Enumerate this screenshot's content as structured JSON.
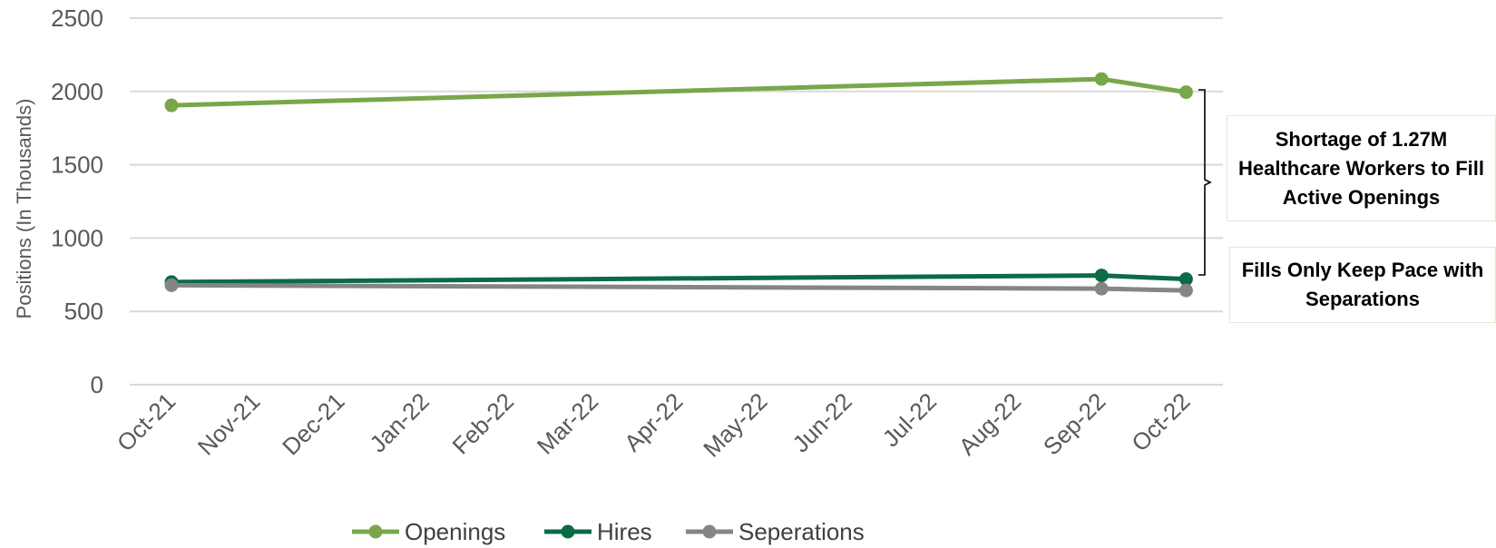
{
  "chart_data": {
    "type": "line",
    "categories": [
      "Oct-21",
      "Nov-21",
      "Dec-21",
      "Jan-22",
      "Feb-22",
      "Mar-22",
      "Apr-22",
      "May-22",
      "Jun-22",
      "Jul-22",
      "Aug-22",
      "Sep-22",
      "Oct-22"
    ],
    "ylabel": "Positions (In Thousands)",
    "ylim": [
      0,
      2500
    ],
    "yticks": [
      0,
      500,
      1000,
      1500,
      2000,
      2500
    ],
    "grid": true,
    "legend_position": "bottom",
    "series": [
      {
        "name": "Openings",
        "color": "#7aa64b",
        "points": [
          [
            0,
            1905
          ],
          [
            11,
            2085
          ],
          [
            12,
            1995
          ]
        ]
      },
      {
        "name": "Hires",
        "color": "#0b6b45",
        "points": [
          [
            0,
            700
          ],
          [
            11,
            745
          ],
          [
            12,
            720
          ]
        ]
      },
      {
        "name": "Seperations",
        "color": "#858585",
        "points": [
          [
            0,
            678
          ],
          [
            11,
            655
          ],
          [
            12,
            643
          ]
        ]
      }
    ],
    "annotations": [
      "Shortage of 1.27M Healthcare Workers to Fill Active Openings",
      "Fills Only Keep Pace with Separations"
    ]
  }
}
